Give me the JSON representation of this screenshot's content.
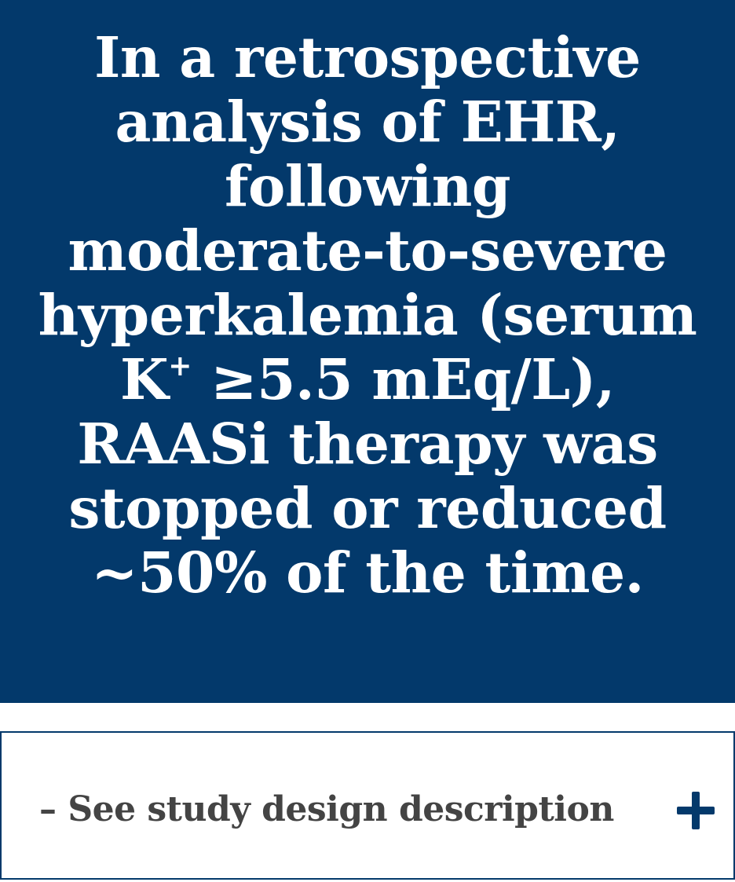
{
  "hero": {
    "lines": [
      "In a retrospective",
      "analysis of EHR,",
      "following",
      "moderate-to-severe",
      "hyperkalemia (serum"
    ],
    "line6_prefix": "K",
    "line6_sup": "+",
    "line6_suffix": " ≥5.5 mEq/L),",
    "lines_after": [
      "RAASi therapy was",
      "stopped or reduced",
      "~50% of the time."
    ]
  },
  "accordion": {
    "label": "– See study design description",
    "icon": "plus-icon"
  },
  "colors": {
    "brand_navy": "#03396b",
    "label_gray": "#444444",
    "text_white": "#ffffff"
  }
}
